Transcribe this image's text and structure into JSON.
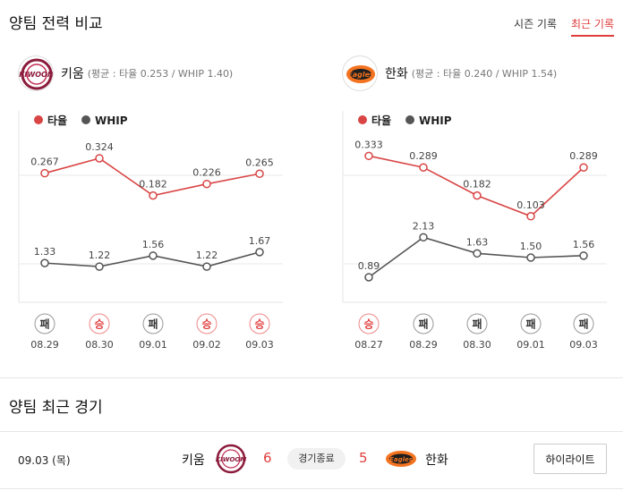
{
  "header": {
    "title": "양팀 전력 비교",
    "tabs": [
      {
        "label": "시즌 기록",
        "active": false
      },
      {
        "label": "최근 기록",
        "active": true
      }
    ]
  },
  "teams": [
    {
      "name": "키움",
      "stats": "(평균 : 타율 0.253 / WHIP 1.40)",
      "logo_text": "KIWOOM"
    },
    {
      "name": "한화",
      "stats": "(평균 : 타율 0.240 / WHIP 1.54)",
      "logo_text": "Eagles"
    }
  ],
  "colors": {
    "accent": "#e03c3c",
    "batting": "#d94545",
    "whip": "#555555",
    "win_circle": "#e03c3c",
    "loss_circle": "#333333"
  },
  "legend": {
    "batting": "타율",
    "whip": "WHIP"
  },
  "chart_data": [
    {
      "type": "line",
      "team": "키움",
      "categories": [
        "08.29",
        "08.30",
        "09.01",
        "09.02",
        "09.03"
      ],
      "series": [
        {
          "name": "타율",
          "values": [
            0.267,
            0.324,
            0.182,
            0.226,
            0.265
          ],
          "labels": [
            "0.267",
            "0.324",
            "0.182",
            "0.226",
            "0.265"
          ]
        },
        {
          "name": "WHIP",
          "values": [
            1.33,
            1.22,
            1.56,
            1.22,
            1.67
          ],
          "labels": [
            "1.33",
            "1.22",
            "1.56",
            "1.22",
            "1.67"
          ]
        }
      ],
      "results": [
        "패",
        "승",
        "패",
        "승",
        "승"
      ]
    },
    {
      "type": "line",
      "team": "한화",
      "categories": [
        "08.27",
        "08.29",
        "08.30",
        "09.01",
        "09.03"
      ],
      "series": [
        {
          "name": "타율",
          "values": [
            0.333,
            0.289,
            0.182,
            0.103,
            0.289
          ],
          "labels": [
            "0.333",
            "0.289",
            "0.182",
            "0.103",
            "0.289"
          ]
        },
        {
          "name": "WHIP",
          "values": [
            0.89,
            2.13,
            1.63,
            1.5,
            1.56
          ],
          "labels": [
            "0.89",
            "2.13",
            "1.63",
            "1.50",
            "1.56"
          ]
        }
      ],
      "results": [
        "승",
        "패",
        "패",
        "패",
        "패"
      ]
    }
  ],
  "recent": {
    "title": "양팀 최근 경기",
    "game": {
      "date": "09.03 (목)",
      "team1": "키움",
      "score1": "6",
      "status": "경기종료",
      "score2": "5",
      "team2": "한화",
      "highlight_label": "하이라이트"
    }
  }
}
